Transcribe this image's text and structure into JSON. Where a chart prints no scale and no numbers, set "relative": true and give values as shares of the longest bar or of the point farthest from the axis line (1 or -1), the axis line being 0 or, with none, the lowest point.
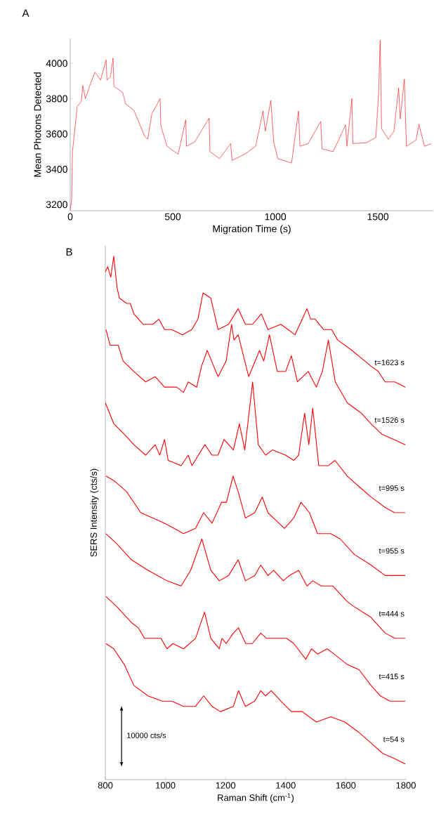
{
  "chart_data": [
    {
      "type": "line",
      "title": "A",
      "xlabel": "Migration Time (s)",
      "ylabel": "Mean Photons Detected",
      "xlim": [
        0,
        1770
      ],
      "ylim": [
        3165,
        4140
      ],
      "xticks": [
        0,
        500,
        1000,
        1500
      ],
      "yticks": [
        3200,
        3400,
        3600,
        3800,
        4000
      ],
      "color": "#ff0000",
      "x": [
        0,
        7,
        11,
        20,
        34,
        54,
        61,
        74,
        94,
        121,
        148,
        175,
        179,
        196,
        209,
        213,
        256,
        270,
        310,
        364,
        378,
        398,
        418,
        438,
        442,
        472,
        526,
        563,
        567,
        607,
        677,
        681,
        728,
        782,
        789,
        850,
        904,
        940,
        951,
        978,
        992,
        1012,
        1079,
        1113,
        1120,
        1160,
        1221,
        1228,
        1282,
        1342,
        1349,
        1373,
        1378,
        1443,
        1490,
        1504,
        1511,
        1518,
        1551,
        1578,
        1601,
        1609,
        1629,
        1639,
        1686,
        1700,
        1727,
        1760
      ],
      "values": [
        3170,
        3230,
        3500,
        3600,
        3755,
        3785,
        3875,
        3800,
        3870,
        3950,
        3905,
        4020,
        3905,
        3925,
        4030,
        3870,
        3835,
        3770,
        3735,
        3585,
        3570,
        3715,
        3755,
        3800,
        3645,
        3530,
        3485,
        3680,
        3530,
        3555,
        3690,
        3500,
        3460,
        3545,
        3450,
        3485,
        3530,
        3730,
        3615,
        3790,
        3555,
        3460,
        3435,
        3730,
        3530,
        3545,
        3670,
        3515,
        3500,
        3650,
        3530,
        3800,
        3545,
        3550,
        3580,
        3840,
        4130,
        3630,
        3570,
        3615,
        3860,
        3685,
        3910,
        3530,
        3565,
        3655,
        3530,
        3545
      ]
    },
    {
      "type": "line",
      "title": "B",
      "xlabel": "Raman Shift (cm$^{-1}$)",
      "ylabel": "SERS Intensity (cts/s)",
      "relative": true,
      "xlim": [
        800,
        1800
      ],
      "xticks": [
        800,
        1000,
        1200,
        1400,
        1600,
        1800
      ],
      "annotations": [
        "10000 cts/s"
      ],
      "series": [
        {
          "name": "t=1623 s",
          "color": "#ff0000",
          "x": [
            800,
            808,
            818,
            828,
            839,
            847,
            871,
            883,
            895,
            926,
            958,
            978,
            997,
            1021,
            1056,
            1088,
            1108,
            1125,
            1151,
            1175,
            1210,
            1242,
            1266,
            1290,
            1319,
            1341,
            1384,
            1408,
            1431,
            1471,
            1483,
            1498,
            1526,
            1553,
            1573,
            1621,
            1684,
            1708,
            1731,
            1763,
            1798
          ],
          "values": [
            0.97,
            0.98,
            0.96,
            1.0,
            0.94,
            0.92,
            0.91,
            0.91,
            0.89,
            0.87,
            0.87,
            0.88,
            0.86,
            0.86,
            0.85,
            0.86,
            0.88,
            0.93,
            0.92,
            0.86,
            0.87,
            0.9,
            0.87,
            0.87,
            0.89,
            0.86,
            0.87,
            0.86,
            0.85,
            0.9,
            0.88,
            0.88,
            0.86,
            0.86,
            0.84,
            0.82,
            0.79,
            0.78,
            0.76,
            0.76,
            0.75
          ]
        },
        {
          "name": "t=1526 s",
          "color": "#ff0000",
          "x": [
            802,
            816,
            843,
            859,
            895,
            934,
            966,
            997,
            1037,
            1060,
            1076,
            1104,
            1120,
            1139,
            1175,
            1202,
            1220,
            1228,
            1242,
            1277,
            1313,
            1327,
            1346,
            1372,
            1400,
            1419,
            1439,
            1475,
            1502,
            1522,
            1542,
            1565,
            1605,
            1652,
            1684,
            1720,
            1760,
            1798
          ],
          "values": [
            0.86,
            0.83,
            0.83,
            0.8,
            0.78,
            0.76,
            0.77,
            0.75,
            0.75,
            0.74,
            0.76,
            0.75,
            0.79,
            0.82,
            0.77,
            0.8,
            0.87,
            0.84,
            0.85,
            0.77,
            0.82,
            0.8,
            0.85,
            0.78,
            0.78,
            0.81,
            0.76,
            0.78,
            0.75,
            0.78,
            0.84,
            0.76,
            0.72,
            0.7,
            0.68,
            0.66,
            0.65,
            0.64
          ]
        },
        {
          "name": "t=995 s",
          "color": "#ff0000",
          "x": [
            800,
            828,
            863,
            895,
            934,
            966,
            981,
            997,
            1009,
            1052,
            1076,
            1088,
            1131,
            1155,
            1175,
            1195,
            1226,
            1246,
            1264,
            1290,
            1309,
            1333,
            1356,
            1400,
            1427,
            1443,
            1463,
            1477,
            1490,
            1510,
            1542,
            1564,
            1605,
            1644,
            1684,
            1731,
            1763,
            1798
          ],
          "values": [
            0.72,
            0.68,
            0.66,
            0.64,
            0.62,
            0.64,
            0.62,
            0.65,
            0.61,
            0.6,
            0.62,
            0.6,
            0.64,
            0.62,
            0.62,
            0.65,
            0.63,
            0.68,
            0.63,
            0.76,
            0.64,
            0.62,
            0.63,
            0.62,
            0.61,
            0.62,
            0.7,
            0.64,
            0.71,
            0.6,
            0.6,
            0.61,
            0.58,
            0.56,
            0.54,
            0.52,
            0.51,
            0.51
          ]
        },
        {
          "name": "t=955 s",
          "color": "#ff0000",
          "x": [
            802,
            832,
            871,
            918,
            958,
            997,
            1029,
            1060,
            1100,
            1127,
            1155,
            1187,
            1203,
            1225,
            1242,
            1266,
            1297,
            1322,
            1341,
            1396,
            1427,
            1451,
            1479,
            1506,
            1550,
            1581,
            1629,
            1684,
            1731,
            1798
          ],
          "values": [
            0.58,
            0.57,
            0.55,
            0.51,
            0.5,
            0.49,
            0.48,
            0.47,
            0.48,
            0.51,
            0.49,
            0.53,
            0.53,
            0.58,
            0.55,
            0.5,
            0.51,
            0.54,
            0.51,
            0.48,
            0.5,
            0.53,
            0.51,
            0.47,
            0.47,
            0.46,
            0.43,
            0.41,
            0.39,
            0.39
          ]
        },
        {
          "name": "t=444 s",
          "color": "#ff0000",
          "x": [
            802,
            839,
            887,
            942,
            974,
            1005,
            1052,
            1084,
            1121,
            1151,
            1179,
            1210,
            1242,
            1266,
            1297,
            1317,
            1341,
            1360,
            1392,
            1412,
            1443,
            1471,
            1490,
            1518,
            1557,
            1605,
            1629,
            1684,
            1731,
            1763,
            1798
          ],
          "values": [
            0.47,
            0.45,
            0.42,
            0.4,
            0.39,
            0.38,
            0.37,
            0.4,
            0.46,
            0.4,
            0.38,
            0.39,
            0.42,
            0.38,
            0.39,
            0.41,
            0.39,
            0.4,
            0.38,
            0.39,
            0.4,
            0.37,
            0.38,
            0.37,
            0.37,
            0.34,
            0.33,
            0.31,
            0.28,
            0.27,
            0.27
          ]
        },
        {
          "name": "t=415 s",
          "color": "#ff0000",
          "x": [
            802,
            839,
            887,
            910,
            930,
            958,
            985,
            1005,
            1025,
            1060,
            1100,
            1130,
            1151,
            1179,
            1188,
            1202,
            1226,
            1243,
            1267,
            1289,
            1317,
            1336,
            1360,
            1403,
            1427,
            1467,
            1486,
            1506,
            1538,
            1561,
            1605,
            1644,
            1684,
            1715,
            1747,
            1798
          ],
          "values": [
            0.35,
            0.33,
            0.3,
            0.29,
            0.27,
            0.27,
            0.27,
            0.25,
            0.26,
            0.25,
            0.27,
            0.32,
            0.27,
            0.25,
            0.27,
            0.26,
            0.28,
            0.29,
            0.26,
            0.26,
            0.28,
            0.27,
            0.27,
            0.27,
            0.26,
            0.23,
            0.25,
            0.24,
            0.25,
            0.24,
            0.22,
            0.21,
            0.18,
            0.16,
            0.15,
            0.15
          ]
        },
        {
          "name": "t=54 s",
          "color": "#ff0000",
          "x": [
            802,
            828,
            863,
            895,
            942,
            989,
            1021,
            1060,
            1100,
            1127,
            1155,
            1183,
            1226,
            1243,
            1266,
            1297,
            1317,
            1333,
            1352,
            1384,
            1419,
            1455,
            1502,
            1550,
            1597,
            1644,
            1684,
            1723,
            1763,
            1798
          ],
          "values": [
            0.26,
            0.25,
            0.22,
            0.18,
            0.16,
            0.15,
            0.15,
            0.14,
            0.14,
            0.16,
            0.14,
            0.13,
            0.14,
            0.17,
            0.14,
            0.15,
            0.17,
            0.16,
            0.17,
            0.15,
            0.13,
            0.13,
            0.11,
            0.12,
            0.11,
            0.09,
            0.07,
            0.05,
            0.04,
            0.03
          ]
        }
      ]
    }
  ]
}
